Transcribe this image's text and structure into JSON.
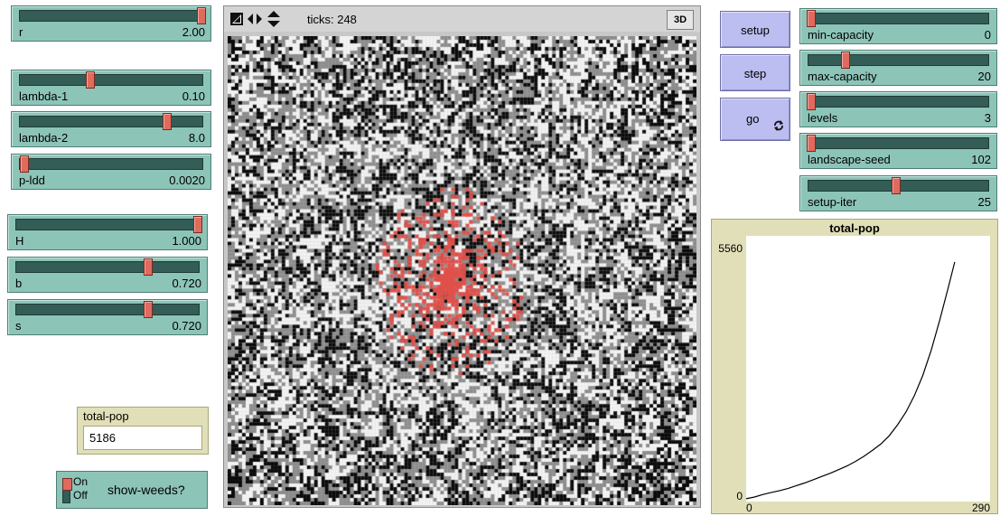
{
  "sliders_left": [
    {
      "id": "r",
      "label": "r",
      "value": "2.00",
      "frac": 1.0
    },
    {
      "id": "lambda1",
      "label": "lambda-1",
      "value": "0.10",
      "frac": 0.38
    },
    {
      "id": "lambda2",
      "label": "lambda-2",
      "value": "8.0",
      "frac": 0.8
    },
    {
      "id": "pldd",
      "label": "p-ldd",
      "value": "0.0020",
      "frac": 0.02
    },
    {
      "id": "H",
      "label": "H",
      "value": "1.000",
      "frac": 1.0
    },
    {
      "id": "b",
      "label": "b",
      "value": "0.720",
      "frac": 0.72
    },
    {
      "id": "s",
      "label": "s",
      "value": "0.720",
      "frac": 0.72
    }
  ],
  "view": {
    "ticks_label": "ticks: 248",
    "btn3d": "3D"
  },
  "buttons": {
    "setup": "setup",
    "step": "step",
    "go": "go"
  },
  "sliders_right": [
    {
      "id": "mincap",
      "label": "min-capacity",
      "value": "0",
      "frac": 0.0
    },
    {
      "id": "maxcap",
      "label": "max-capacity",
      "value": "20",
      "frac": 0.2
    },
    {
      "id": "levels",
      "label": "levels",
      "value": "3",
      "frac": 0.0
    },
    {
      "id": "seed",
      "label": "landscape-seed",
      "value": "102",
      "frac": 0.0
    },
    {
      "id": "iter",
      "label": "setup-iter",
      "value": "25",
      "frac": 0.48
    }
  ],
  "plot": {
    "title": "total-pop",
    "ymax_label": "5560",
    "ymin_label": "0",
    "xmin_label": "0",
    "xmax_label": "290",
    "xmax": 290,
    "ymax": 5560
  },
  "monitor": {
    "label": "total-pop",
    "value": "5186"
  },
  "switch": {
    "on": "On",
    "off": "Off",
    "label": "show-weeds?"
  },
  "colors": {
    "patch_black": "#0a0a0a",
    "patch_gray": "#8c8c8c",
    "patch_white": "#f2f2f2",
    "weed": "#e0504a",
    "accent_slider": "#8dc4b8",
    "accent_button": "#bcbdf0"
  },
  "chart_data": {
    "type": "line",
    "title": "total-pop",
    "xlabel": "",
    "ylabel": "",
    "xlim": [
      0,
      290
    ],
    "ylim": [
      0,
      5560
    ],
    "series": [
      {
        "x": [
          0,
          10,
          20,
          30,
          40,
          50,
          60,
          70,
          80,
          90,
          100,
          110,
          120,
          130,
          140,
          150,
          160,
          170,
          180,
          190,
          200,
          210,
          220,
          230,
          240,
          248
        ],
        "y": [
          2,
          40,
          95,
          140,
          180,
          230,
          290,
          350,
          420,
          490,
          560,
          640,
          720,
          820,
          930,
          1060,
          1200,
          1380,
          1620,
          1900,
          2260,
          2700,
          3250,
          3900,
          4600,
          5186
        ]
      }
    ],
    "legend": "none",
    "grid": false
  }
}
